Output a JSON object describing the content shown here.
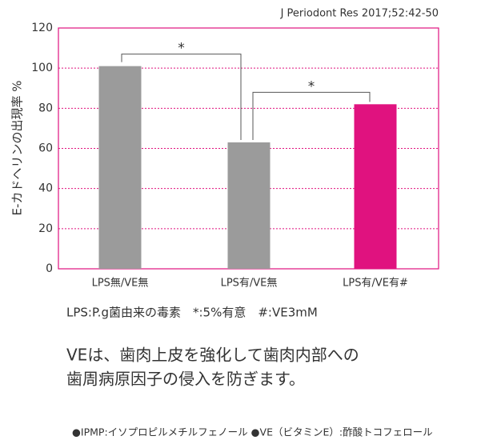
{
  "chart_data": {
    "type": "bar",
    "source": "J Periodont Res 2017;52:42-50",
    "y_label": "E-カドヘリンの出現率 %",
    "categories": [
      "LPS無/VE無",
      "LPS有/VE無",
      "LPS有/VE有#"
    ],
    "values": [
      101,
      63,
      82
    ],
    "colors": [
      "#9b9b9b",
      "#9b9b9b",
      "#e0127f"
    ],
    "ylim": [
      0,
      120
    ],
    "yticks": [
      0,
      20,
      40,
      60,
      80,
      100,
      120
    ],
    "grid": true,
    "annotations": [
      "*",
      "*"
    ],
    "note": "LPS:P.g菌由来の毒素　*:5%有意　#:VE3mM"
  },
  "body": [
    "VEは、歯肉上皮を強化して歯肉内部への",
    "歯周病原因子の侵入を防ぎます。"
  ],
  "footer": "●IPMP:イソプロピルメチルフェノール ●VE（ビタミンE）:酢酸トコフェロール"
}
